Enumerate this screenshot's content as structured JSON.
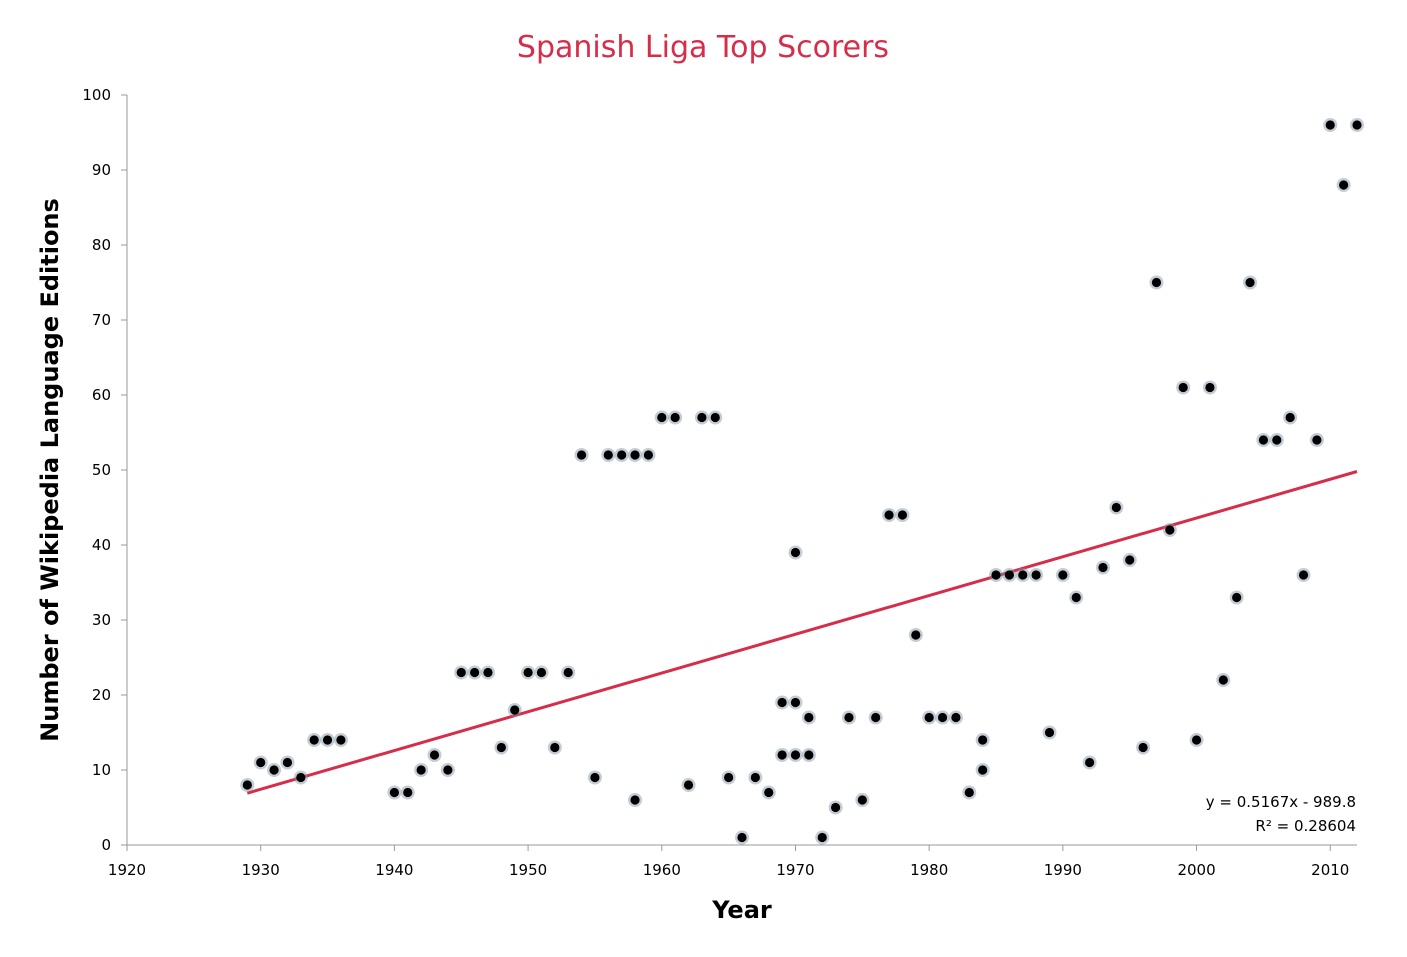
{
  "chart_data": {
    "type": "scatter",
    "title": "Spanish Liga Top Scorers",
    "xlabel": "Year",
    "ylabel": "Number of Wikipedia Language Editions",
    "xlim": [
      1920,
      2012
    ],
    "ylim": [
      0,
      100
    ],
    "x_ticks": [
      "1920",
      "1930",
      "1940",
      "1950",
      "1960",
      "1970",
      "1980",
      "1990",
      "2000",
      "2010"
    ],
    "y_ticks": [
      "0",
      "10",
      "20",
      "30",
      "40",
      "50",
      "60",
      "70",
      "80",
      "90",
      "100"
    ],
    "grid": false,
    "legend": "none",
    "colors": {
      "title": "#d62d4a",
      "trendline": "#d62d4a",
      "points": "#000000",
      "axis": "#999999"
    },
    "series": [
      {
        "points": [
          [
            1929,
            8
          ],
          [
            1930,
            11
          ],
          [
            1931,
            10
          ],
          [
            1932,
            11
          ],
          [
            1933,
            9
          ],
          [
            1934,
            14
          ],
          [
            1935,
            14
          ],
          [
            1936,
            14
          ],
          [
            1940,
            7
          ],
          [
            1941,
            7
          ],
          [
            1942,
            10
          ],
          [
            1943,
            12
          ],
          [
            1944,
            10
          ],
          [
            1945,
            23
          ],
          [
            1946,
            23
          ],
          [
            1947,
            23
          ],
          [
            1948,
            13
          ],
          [
            1949,
            18
          ],
          [
            1950,
            23
          ],
          [
            1951,
            23
          ],
          [
            1952,
            13
          ],
          [
            1953,
            23
          ],
          [
            1954,
            52
          ],
          [
            1955,
            9
          ],
          [
            1956,
            52
          ],
          [
            1957,
            52
          ],
          [
            1958,
            52
          ],
          [
            1958,
            6
          ],
          [
            1959,
            52
          ],
          [
            1960,
            57
          ],
          [
            1961,
            57
          ],
          [
            1962,
            8
          ],
          [
            1963,
            57
          ],
          [
            1964,
            57
          ],
          [
            1965,
            9
          ],
          [
            1966,
            1
          ],
          [
            1967,
            9
          ],
          [
            1968,
            7
          ],
          [
            1969,
            19
          ],
          [
            1969,
            12
          ],
          [
            1970,
            39
          ],
          [
            1970,
            19
          ],
          [
            1970,
            12
          ],
          [
            1971,
            17
          ],
          [
            1971,
            12
          ],
          [
            1972,
            1
          ],
          [
            1973,
            5
          ],
          [
            1974,
            17
          ],
          [
            1975,
            6
          ],
          [
            1976,
            17
          ],
          [
            1977,
            44
          ],
          [
            1978,
            44
          ],
          [
            1979,
            28
          ],
          [
            1980,
            17
          ],
          [
            1981,
            17
          ],
          [
            1982,
            17
          ],
          [
            1983,
            7
          ],
          [
            1984,
            14
          ],
          [
            1984,
            10
          ],
          [
            1985,
            36
          ],
          [
            1986,
            36
          ],
          [
            1987,
            36
          ],
          [
            1988,
            36
          ],
          [
            1989,
            15
          ],
          [
            1990,
            36
          ],
          [
            1991,
            33
          ],
          [
            1992,
            11
          ],
          [
            1993,
            37
          ],
          [
            1994,
            45
          ],
          [
            1995,
            38
          ],
          [
            1996,
            13
          ],
          [
            1997,
            75
          ],
          [
            1998,
            42
          ],
          [
            1999,
            61
          ],
          [
            2000,
            14
          ],
          [
            2001,
            61
          ],
          [
            2002,
            22
          ],
          [
            2003,
            33
          ],
          [
            2004,
            75
          ],
          [
            2005,
            54
          ],
          [
            2006,
            54
          ],
          [
            2007,
            57
          ],
          [
            2008,
            36
          ],
          [
            2009,
            54
          ],
          [
            2010,
            96
          ],
          [
            2011,
            88
          ],
          [
            2012,
            96
          ]
        ]
      }
    ],
    "trendline": {
      "slope": 0.5167,
      "intercept": -989.8,
      "x_range": [
        1929,
        2012
      ],
      "equation": "y = 0.5167x - 989.8",
      "r_squared": "R² = 0.28604"
    }
  }
}
